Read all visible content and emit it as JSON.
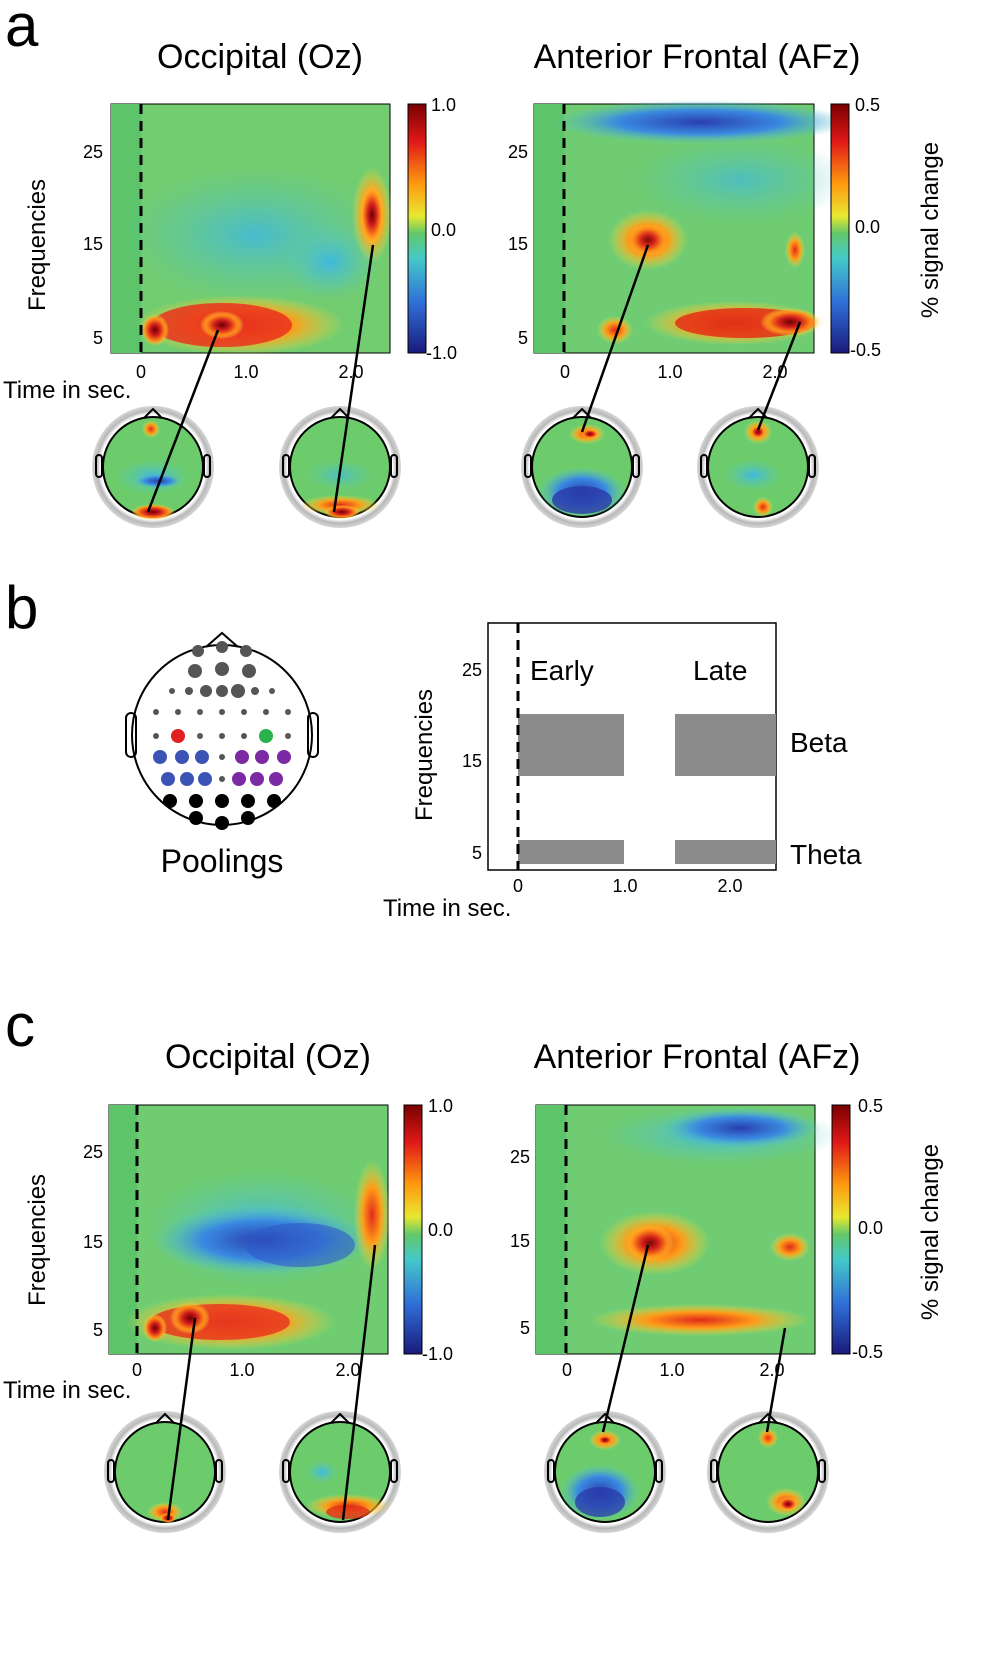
{
  "panels": {
    "a": {
      "letter": "a",
      "left": {
        "title": "Occipital (Oz)",
        "ylabel": "Frequencies",
        "xlabel": "Time in sec.",
        "yticks": [
          "25",
          "15",
          "5"
        ],
        "xticks": [
          "0",
          "1.0",
          "2.0"
        ],
        "cbar": [
          "1.0",
          "0.0",
          "-1.0"
        ]
      },
      "right": {
        "title": "Anterior Frontal (AFz)",
        "yticks": [
          "25",
          "15",
          "5"
        ],
        "xticks": [
          "0",
          "1.0",
          "2.0"
        ],
        "cbar": [
          "0.5",
          "0.0",
          "-0.5"
        ],
        "cbar_label": "% signal change"
      }
    },
    "b": {
      "letter": "b",
      "poolings_label": "Poolings",
      "ylabel": "Frequencies",
      "xlabel": "Time in sec.",
      "yticks": [
        "25",
        "15",
        "5"
      ],
      "xticks": [
        "0",
        "1.0",
        "2.0"
      ],
      "windows": [
        "Early",
        "Late"
      ],
      "bands": [
        "Beta",
        "Theta"
      ]
    },
    "c": {
      "letter": "c",
      "left": {
        "title": "Occipital (Oz)",
        "ylabel": "Frequencies",
        "xlabel": "Time in sec.",
        "yticks": [
          "25",
          "15",
          "5"
        ],
        "xticks": [
          "0",
          "1.0",
          "2.0"
        ],
        "cbar": [
          "1.0",
          "0.0",
          "-1.0"
        ]
      },
      "right": {
        "title": "Anterior Frontal (AFz)",
        "yticks": [
          "25",
          "15",
          "5"
        ],
        "xticks": [
          "0",
          "1.0",
          "2.0"
        ],
        "cbar": [
          "0.5",
          "0.0",
          "-0.5"
        ],
        "cbar_label": "% signal change"
      }
    }
  },
  "colors": {
    "map_background": "#62c86a",
    "positive": "#d11f1f",
    "negative": "#2f4fb8",
    "pool_red": "#e02020",
    "pool_green": "#2bb24a",
    "pool_blue": "#3a53b4",
    "pool_purple": "#7b2aa4",
    "grey_box": "#8c8c8c"
  }
}
